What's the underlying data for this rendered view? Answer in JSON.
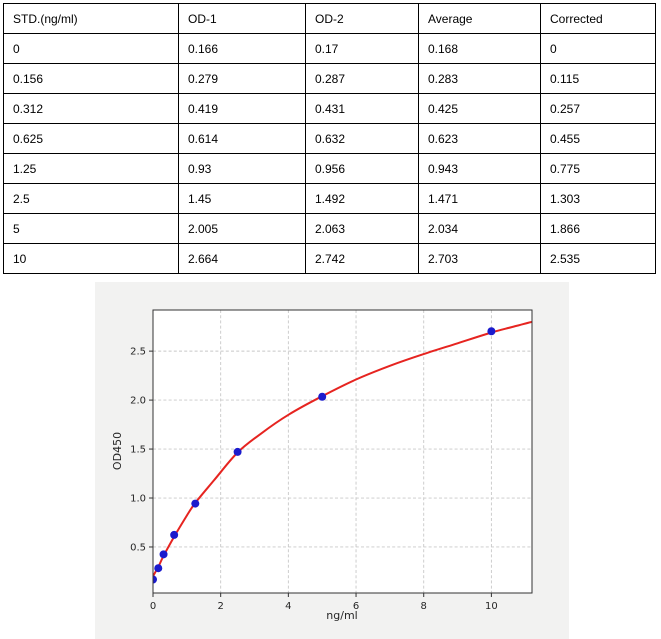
{
  "table": {
    "columns": [
      "STD.(ng/ml)",
      "OD-1",
      "OD-2",
      "Average",
      "Corrected"
    ],
    "rows": [
      [
        "0",
        "0.166",
        "0.17",
        "0.168",
        "0"
      ],
      [
        "0.156",
        "0.279",
        "0.287",
        "0.283",
        "0.115"
      ],
      [
        "0.312",
        "0.419",
        "0.431",
        "0.425",
        "0.257"
      ],
      [
        "0.625",
        "0.614",
        "0.632",
        "0.623",
        "0.455"
      ],
      [
        "1.25",
        "0.93",
        "0.956",
        "0.943",
        "0.775"
      ],
      [
        "2.5",
        "1.45",
        "1.492",
        "1.471",
        "1.303"
      ],
      [
        "5",
        "2.005",
        "2.063",
        "2.034",
        "1.866"
      ],
      [
        "10",
        "2.664",
        "2.742",
        "2.703",
        "2.535"
      ]
    ]
  },
  "chart_data": {
    "type": "scatter",
    "title": "",
    "xlabel": "ng/ml",
    "ylabel": "OD450",
    "xlim": [
      0,
      11.2
    ],
    "ylim": [
      0.03,
      2.92
    ],
    "x_ticks": [
      0,
      2,
      4,
      6,
      8,
      10
    ],
    "y_ticks": [
      0.5,
      1.0,
      1.5,
      2.0,
      2.5
    ],
    "grid": "dashed",
    "legend": "none",
    "series": [
      {
        "name": "standard-points",
        "type": "scatter",
        "x": [
          0,
          0.156,
          0.312,
          0.625,
          1.25,
          2.5,
          5,
          10
        ],
        "y": [
          0.168,
          0.283,
          0.425,
          0.623,
          0.943,
          1.471,
          2.034,
          2.703
        ]
      },
      {
        "name": "fitted-curve",
        "type": "line",
        "x": [
          0,
          0.08,
          0.156,
          0.312,
          0.625,
          1.0,
          1.25,
          1.8,
          2.5,
          3.2,
          4.0,
          5.0,
          6.0,
          7.0,
          8.0,
          9.0,
          10.0,
          10.6,
          11.2
        ],
        "y": [
          0.2,
          0.25,
          0.295,
          0.41,
          0.605,
          0.82,
          0.95,
          1.18,
          1.465,
          1.66,
          1.85,
          2.04,
          2.21,
          2.35,
          2.47,
          2.58,
          2.69,
          2.745,
          2.8
        ]
      }
    ],
    "colors": {
      "figure_bg": "#f2f2f1",
      "plot_bg": "#ffffff",
      "grid": "#c8c8c8",
      "spine": "#333333",
      "tick": "#262626",
      "curve": "#e62420",
      "point": "#1b1bcd"
    }
  }
}
